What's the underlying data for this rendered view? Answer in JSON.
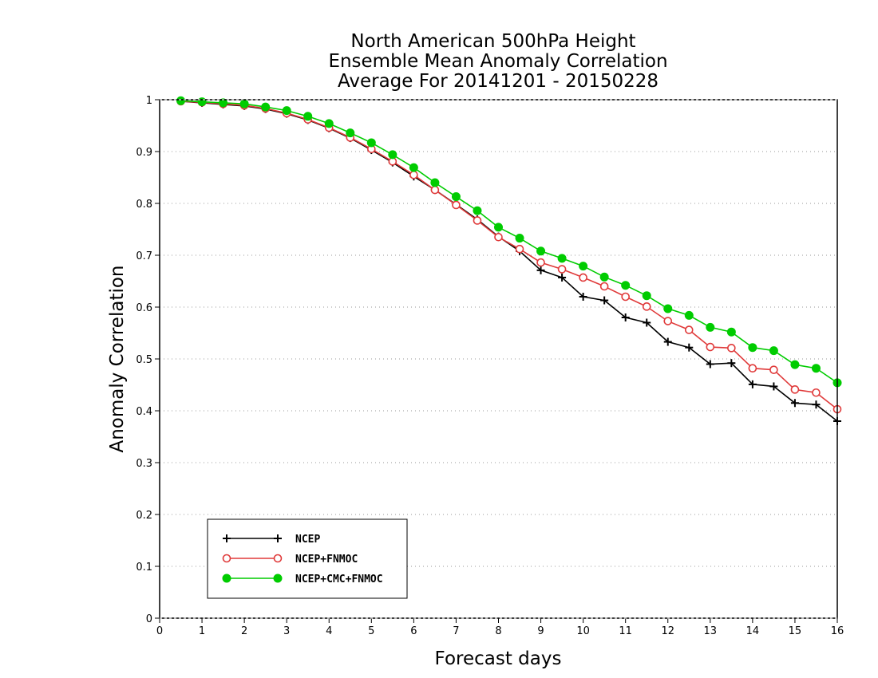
{
  "chart_data": {
    "type": "line",
    "title_lines": [
      "North American 500hPa Height",
      "Ensemble Mean Anomaly Correlation",
      "Average For 20141201 - 20150228"
    ],
    "xlabel": "Forecast days",
    "ylabel": "Anomaly Correlation",
    "xlim": [
      0,
      16
    ],
    "ylim": [
      0,
      1
    ],
    "xticks": [
      "0",
      "1",
      "2",
      "3",
      "4",
      "5",
      "6",
      "7",
      "8",
      "9",
      "10",
      "11",
      "12",
      "13",
      "14",
      "15",
      "16"
    ],
    "yticks": [
      "0",
      "0.1",
      "0.2",
      "0.3",
      "0.4",
      "0.5",
      "0.6",
      "0.7",
      "0.8",
      "0.9",
      "1"
    ],
    "grid": "horizontal dotted",
    "legend_position": "bottom-left",
    "x": [
      0.5,
      1,
      1.5,
      2,
      2.5,
      3,
      3.5,
      4,
      4.5,
      5,
      5.5,
      6,
      6.5,
      7,
      7.5,
      8,
      8.5,
      9,
      9.5,
      10,
      10.5,
      11,
      11.5,
      12,
      12.5,
      13,
      13.5,
      14,
      14.5,
      15,
      15.5,
      16
    ],
    "series": [
      {
        "name": "NCEP",
        "color": "#000000",
        "marker": "plus",
        "values": [
          0.997,
          0.994,
          0.991,
          0.988,
          0.982,
          0.973,
          0.961,
          0.945,
          0.926,
          0.903,
          0.879,
          0.852,
          0.826,
          0.798,
          0.769,
          0.736,
          0.708,
          0.671,
          0.657,
          0.62,
          0.613,
          0.58,
          0.57,
          0.533,
          0.522,
          0.49,
          0.492,
          0.451,
          0.447,
          0.415,
          0.412,
          0.38
        ]
      },
      {
        "name": "NCEP+FNMOC",
        "color": "#e03a3a",
        "marker": "open-circle",
        "values": [
          0.997,
          0.995,
          0.992,
          0.989,
          0.983,
          0.974,
          0.962,
          0.946,
          0.927,
          0.905,
          0.881,
          0.855,
          0.826,
          0.797,
          0.767,
          0.735,
          0.712,
          0.686,
          0.673,
          0.657,
          0.64,
          0.62,
          0.601,
          0.573,
          0.556,
          0.523,
          0.521,
          0.482,
          0.479,
          0.441,
          0.435,
          0.403
        ]
      },
      {
        "name": "NCEP+CMC+FNMOC",
        "color": "#00cc00",
        "marker": "filled-circle",
        "values": [
          0.998,
          0.996,
          0.994,
          0.992,
          0.986,
          0.979,
          0.968,
          0.954,
          0.936,
          0.917,
          0.894,
          0.869,
          0.84,
          0.813,
          0.786,
          0.754,
          0.733,
          0.708,
          0.694,
          0.679,
          0.658,
          0.642,
          0.622,
          0.597,
          0.584,
          0.561,
          0.552,
          0.522,
          0.516,
          0.489,
          0.482,
          0.454
        ]
      }
    ]
  }
}
